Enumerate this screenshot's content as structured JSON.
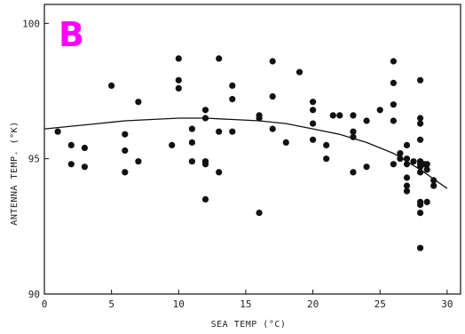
{
  "panel_letter": "B",
  "colors": {
    "accent": "#ff00ff",
    "ink": "#111111"
  },
  "chart_data": {
    "type": "scatter",
    "xlabel": "SEA TEMP (°C)",
    "ylabel": "ANTENNA TEMP. (°K)",
    "xlim": [
      0,
      31
    ],
    "ylim": [
      90,
      100.7
    ],
    "xticks": [
      0,
      5,
      10,
      15,
      20,
      25,
      30
    ],
    "yticks": [
      90,
      95,
      100
    ],
    "grid": false,
    "series": [
      {
        "kind": "points",
        "points": [
          [
            1.0,
            96.0
          ],
          [
            2.0,
            95.5
          ],
          [
            2.0,
            94.8
          ],
          [
            3.0,
            95.4
          ],
          [
            3.0,
            94.7
          ],
          [
            5.0,
            97.7
          ],
          [
            6.0,
            95.9
          ],
          [
            6.0,
            95.3
          ],
          [
            6.0,
            94.5
          ],
          [
            7.0,
            97.1
          ],
          [
            7.0,
            94.9
          ],
          [
            9.5,
            95.5
          ],
          [
            10.0,
            98.7
          ],
          [
            10.0,
            97.9
          ],
          [
            10.0,
            97.6
          ],
          [
            11.0,
            96.1
          ],
          [
            11.0,
            95.6
          ],
          [
            11.0,
            94.9
          ],
          [
            12.0,
            96.8
          ],
          [
            12.0,
            96.5
          ],
          [
            12.0,
            94.9
          ],
          [
            12.0,
            94.8
          ],
          [
            12.0,
            93.5
          ],
          [
            13.0,
            98.7
          ],
          [
            13.0,
            96.0
          ],
          [
            13.0,
            94.5
          ],
          [
            14.0,
            97.7
          ],
          [
            14.0,
            97.2
          ],
          [
            14.0,
            96.0
          ],
          [
            16.0,
            96.6
          ],
          [
            16.0,
            96.5
          ],
          [
            16.0,
            93.0
          ],
          [
            17.0,
            98.6
          ],
          [
            17.0,
            97.3
          ],
          [
            17.0,
            96.1
          ],
          [
            18.0,
            95.6
          ],
          [
            19.0,
            98.2
          ],
          [
            20.0,
            97.1
          ],
          [
            20.0,
            96.8
          ],
          [
            20.0,
            96.3
          ],
          [
            20.0,
            95.7
          ],
          [
            21.0,
            95.5
          ],
          [
            21.0,
            95.0
          ],
          [
            21.5,
            96.6
          ],
          [
            22.0,
            96.6
          ],
          [
            23.0,
            96.6
          ],
          [
            23.0,
            96.0
          ],
          [
            23.0,
            95.8
          ],
          [
            23.0,
            94.5
          ],
          [
            24.0,
            96.4
          ],
          [
            24.0,
            94.7
          ],
          [
            25.0,
            96.8
          ],
          [
            26.0,
            98.6
          ],
          [
            26.0,
            97.8
          ],
          [
            26.0,
            97.0
          ],
          [
            26.0,
            96.4
          ],
          [
            26.0,
            94.8
          ],
          [
            26.5,
            95.2
          ],
          [
            26.5,
            95.0
          ],
          [
            27.0,
            95.5
          ],
          [
            27.0,
            95.0
          ],
          [
            27.0,
            94.8
          ],
          [
            27.0,
            94.3
          ],
          [
            27.0,
            94.0
          ],
          [
            27.0,
            93.8
          ],
          [
            27.5,
            94.9
          ],
          [
            28.0,
            97.9
          ],
          [
            28.0,
            96.5
          ],
          [
            28.0,
            96.3
          ],
          [
            28.0,
            95.7
          ],
          [
            28.0,
            94.9
          ],
          [
            28.0,
            94.8
          ],
          [
            28.0,
            94.7
          ],
          [
            28.0,
            94.5
          ],
          [
            28.0,
            93.4
          ],
          [
            28.0,
            93.3
          ],
          [
            28.0,
            93.0
          ],
          [
            28.0,
            91.7
          ],
          [
            28.3,
            94.8
          ],
          [
            28.5,
            94.8
          ],
          [
            28.5,
            94.6
          ],
          [
            28.5,
            93.4
          ],
          [
            29.0,
            94.2
          ],
          [
            29.0,
            94.0
          ]
        ]
      },
      {
        "kind": "fit-curve",
        "points": [
          [
            0,
            96.1
          ],
          [
            2,
            96.2
          ],
          [
            4,
            96.3
          ],
          [
            6,
            96.4
          ],
          [
            8,
            96.45
          ],
          [
            10,
            96.5
          ],
          [
            12,
            96.5
          ],
          [
            14,
            96.45
          ],
          [
            16,
            96.4
          ],
          [
            18,
            96.3
          ],
          [
            20,
            96.1
          ],
          [
            22,
            95.9
          ],
          [
            24,
            95.6
          ],
          [
            26,
            95.2
          ],
          [
            28,
            94.6
          ],
          [
            30,
            93.9
          ]
        ]
      }
    ]
  }
}
